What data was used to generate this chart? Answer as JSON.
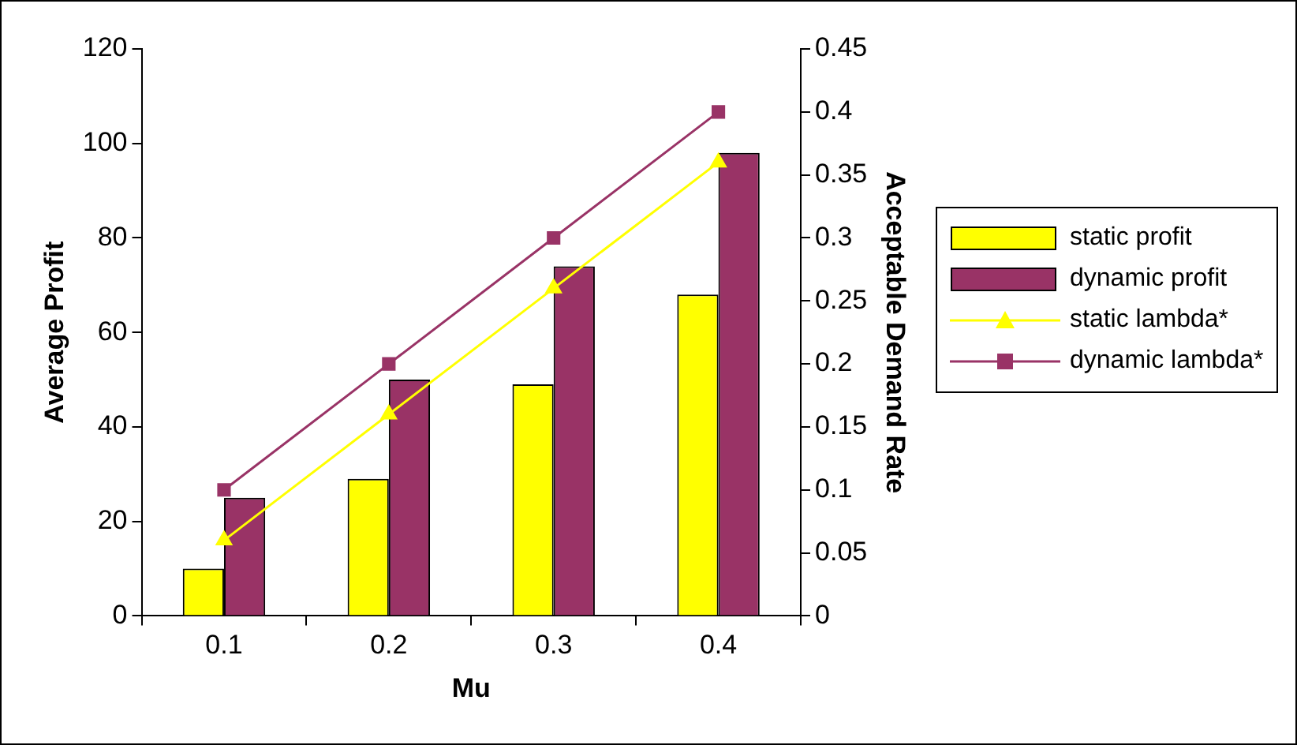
{
  "chart_data": {
    "type": "bar",
    "xlabel": "Mu",
    "ylabel": "Average Profit",
    "y2label": "Acceptable Demand Rate",
    "categories": [
      "0.1",
      "0.2",
      "0.3",
      "0.4"
    ],
    "series": [
      {
        "name": "static profit",
        "color": "#ffff00",
        "values": [
          10,
          29,
          49,
          68
        ]
      },
      {
        "name": "dynamic profit",
        "color": "#993366",
        "values": [
          25,
          50,
          74,
          98
        ]
      },
      {
        "name": "static lambda*",
        "type": "line",
        "axis": "y2",
        "marker": "triangle",
        "color": "#ffff00",
        "values": [
          0.06,
          0.16,
          0.26,
          0.36
        ]
      },
      {
        "name": "dynamic lambda*",
        "type": "line",
        "axis": "y2",
        "marker": "square",
        "color": "#993366",
        "values": [
          0.1,
          0.2,
          0.3,
          0.4
        ]
      }
    ],
    "ylim": [
      0,
      120
    ],
    "yticks": [
      0,
      20,
      40,
      60,
      80,
      100,
      120
    ],
    "y2lim": [
      0,
      0.45
    ],
    "y2ticks": [
      0,
      0.05,
      0.1,
      0.15,
      0.2,
      0.25,
      0.3,
      0.35,
      0.4,
      0.45
    ],
    "grid": false,
    "legend": "right"
  }
}
